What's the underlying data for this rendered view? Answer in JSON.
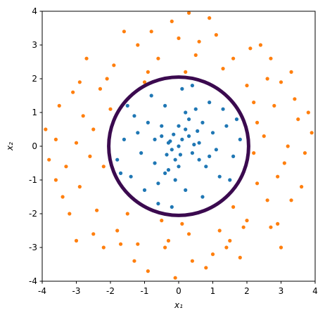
{
  "chart_data": {
    "type": "scatter",
    "x_label": "x₁",
    "y_label": "x₂",
    "xlim": [
      -4,
      4
    ],
    "ylim": [
      -4,
      4
    ],
    "xticks": [
      -4,
      -3,
      -2,
      -1,
      0,
      1,
      2,
      3,
      4
    ],
    "yticks": [
      -4,
      -3,
      -2,
      -1,
      0,
      1,
      2,
      3,
      4
    ],
    "series": [
      {
        "color": "#ff7f0e",
        "x": [
          2.5,
          3.1,
          2.8,
          3.5,
          2.3,
          3.7,
          2.6,
          3.0,
          2.2,
          3.3,
          2.0,
          2.7,
          1.5,
          1.0,
          0.3,
          -0.4,
          0.8,
          -1.2,
          -1.8,
          -2.4,
          -2.9,
          -3.3,
          -2.6,
          -3.6,
          -2.8,
          -3.1,
          -2.3,
          -1.9,
          -1.2,
          -0.6,
          0.0,
          0.5,
          1.1,
          1.6,
          2.1,
          -0.2,
          0.9,
          -1.6,
          -2.7,
          -3.5,
          -3.8,
          -3.2,
          -2.2,
          -0.9,
          0.4,
          1.8,
          2.9,
          3.6,
          3.9,
          3.3,
          2.4,
          1.3,
          -0.9,
          -2.0,
          -2.2,
          -1.5,
          0.1,
          1.6,
          2.2,
          2.3,
          -3.0,
          -3.9,
          3.2,
          0.2,
          -0.5,
          -2.5,
          2.6,
          3.8,
          -1.3,
          1.2,
          -2.9,
          2.0,
          -1.0,
          2.9,
          -3.4,
          0.6,
          -0.3,
          1.9,
          -2.1,
          3.4,
          -0.1,
          -3.6,
          2.7,
          -1.7,
          0.3,
          1.4,
          -2.5,
          3.0,
          -3.0,
          -0.8
        ],
        "y": [
          0.3,
          -0.5,
          1.2,
          0.8,
          -1.1,
          -0.2,
          2.0,
          1.9,
          1.3,
          -1.6,
          -2.2,
          -2.4,
          -2.8,
          -3.2,
          -2.6,
          -3.0,
          -3.6,
          -2.9,
          -2.5,
          -1.9,
          -1.2,
          -0.6,
          -0.3,
          0.2,
          0.9,
          1.6,
          1.7,
          2.4,
          3.0,
          2.6,
          3.2,
          2.7,
          3.3,
          2.6,
          2.9,
          3.7,
          3.8,
          3.4,
          2.6,
          1.2,
          -0.4,
          -2.0,
          -3.0,
          -3.7,
          -3.4,
          -3.3,
          -2.3,
          -1.2,
          0.4,
          2.2,
          3.0,
          2.3,
          2.2,
          1.1,
          -0.6,
          -2.0,
          -2.3,
          -1.8,
          -0.2,
          0.7,
          0.1,
          0.5,
          0.0,
          2.2,
          -2.2,
          -2.6,
          -1.6,
          1.0,
          -3.4,
          -2.5,
          1.9,
          1.8,
          1.9,
          -0.9,
          -1.5,
          3.1,
          -2.8,
          -2.4,
          2.0,
          1.4,
          -3.9,
          -1.0,
          2.6,
          -2.9,
          3.95,
          -3.0,
          0.5,
          -3.0,
          -2.8,
          3.4
        ]
      },
      {
        "color": "#1f77b4",
        "x": [
          0.1,
          -0.3,
          0.4,
          -0.1,
          0.2,
          -0.5,
          0.6,
          -0.2,
          0.0,
          0.3,
          -0.7,
          0.8,
          -0.9,
          1.0,
          -1.1,
          0.5,
          -0.4,
          0.2,
          -0.6,
          1.2,
          1.4,
          -1.3,
          0.9,
          -1.0,
          1.6,
          -1.6,
          0.1,
          -0.2,
          1.3,
          -1.4,
          0.7,
          -0.8,
          1.8,
          -1.8,
          0.3,
          -0.3,
          0.6,
          -0.5,
          0.05,
          -0.15,
          0.45,
          -0.35,
          1.1,
          -1.2,
          0.2,
          -0.1,
          0.7,
          -0.7,
          0.9,
          -0.4,
          1.5,
          -1.5,
          0.4,
          -0.6,
          1.7,
          -1.7,
          0.0,
          0.0,
          0.55,
          -0.25
        ],
        "y": [
          0.2,
          0.1,
          -0.2,
          -0.4,
          0.5,
          0.3,
          0.1,
          -0.1,
          0.0,
          0.3,
          -0.5,
          -0.6,
          0.7,
          0.4,
          -0.2,
          1.1,
          1.2,
          -1.3,
          -1.1,
          -0.9,
          0.6,
          0.9,
          1.3,
          -1.3,
          -0.3,
          0.2,
          1.7,
          -1.8,
          1.1,
          -0.9,
          -1.5,
          1.5,
          0.2,
          -0.4,
          0.8,
          -0.7,
          -0.4,
          0.6,
          -0.25,
          0.35,
          0.05,
          -0.25,
          -0.1,
          0.4,
          1.0,
          -1.0,
          0.7,
          0.2,
          -0.3,
          -0.8,
          -1.0,
          1.2,
          1.8,
          -1.7,
          0.8,
          -0.8,
          0.6,
          -0.6,
          0.45,
          0.15
        ]
      }
    ],
    "boundary": {
      "cx": 0,
      "cy": 0,
      "r": 2.05,
      "color": "#3b0a4f"
    }
  }
}
